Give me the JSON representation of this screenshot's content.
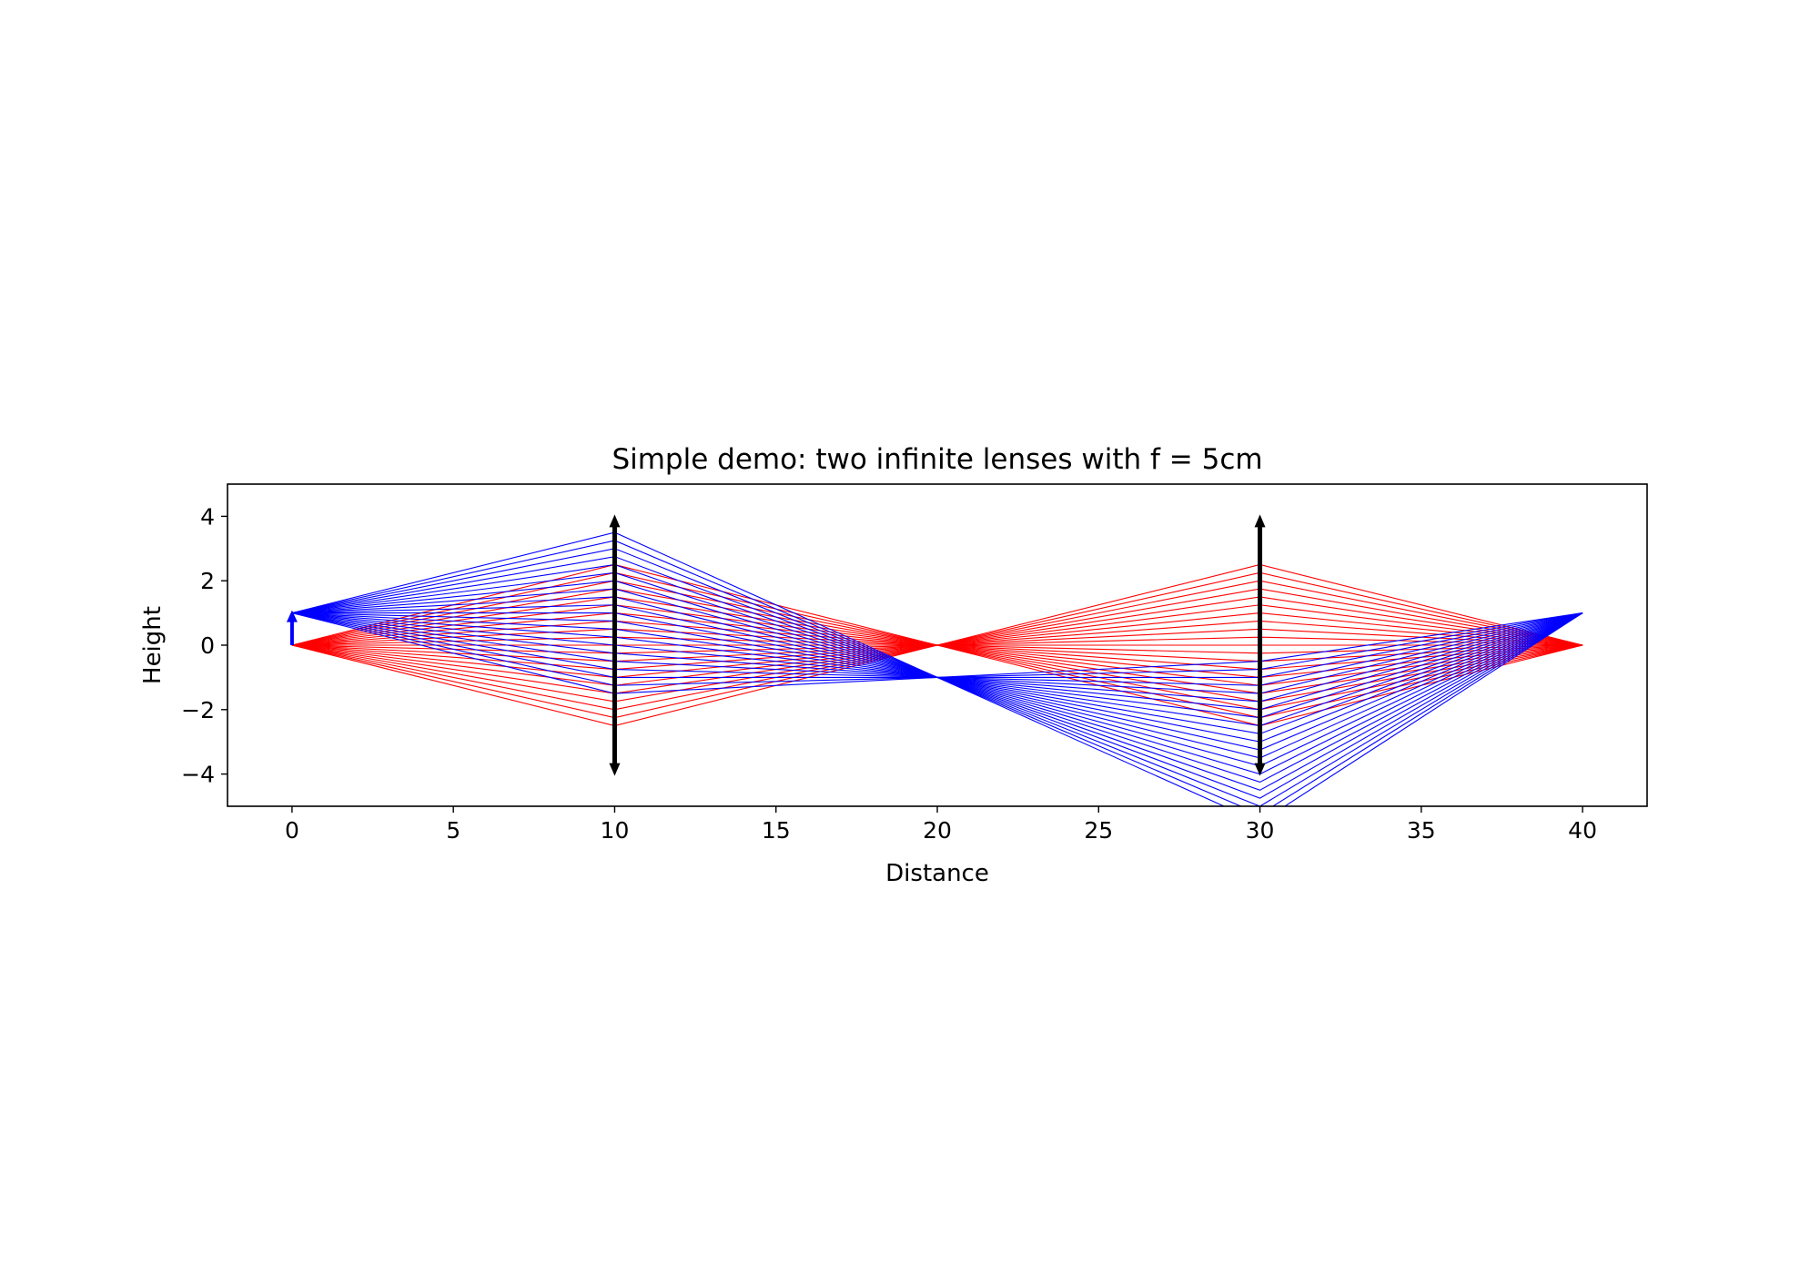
{
  "chart_data": {
    "type": "line",
    "title": "Simple demo: two infinite lenses with f = 5cm",
    "xlabel": "Distance",
    "ylabel": "Height",
    "xlim": [
      -2,
      42
    ],
    "ylim": [
      -5,
      5
    ],
    "xticks": [
      0,
      5,
      10,
      15,
      20,
      25,
      30,
      35,
      40
    ],
    "yticks": [
      4,
      2,
      0,
      -2,
      -4
    ],
    "xtick_labels": [
      "0",
      "5",
      "10",
      "15",
      "20",
      "25",
      "30",
      "35",
      "40"
    ],
    "ytick_labels": [
      "4",
      "2",
      "0",
      "−2",
      "−4"
    ],
    "grid": false,
    "lenses": [
      {
        "x": 10,
        "half_height": 4,
        "color": "#000000"
      },
      {
        "x": 30,
        "half_height": 4,
        "color": "#000000"
      }
    ],
    "object": {
      "x": 0,
      "y_from": 0,
      "y_to": 1,
      "color": "#0000ff"
    },
    "ray_fans": [
      {
        "color": "#ff0000",
        "source_height": 0,
        "x": [
          0,
          10,
          20,
          30,
          40
        ],
        "lens1_heights_from": -2.5,
        "lens1_heights_to": 2.5,
        "ray_count": 21
      },
      {
        "color": "#0000ff",
        "source_height": 1,
        "x": [
          0,
          10,
          20,
          30,
          40
        ],
        "lens1_heights_from": -1.5,
        "lens1_heights_to": 3.5,
        "ray_count": 21
      }
    ],
    "series": [
      {
        "color": "#ff0000",
        "x": [
          0,
          10,
          20,
          30,
          40
        ],
        "y": [
          0,
          -2.5,
          0,
          2.5,
          0
        ]
      },
      {
        "color": "#ff0000",
        "x": [
          0,
          10,
          20,
          30,
          40
        ],
        "y": [
          0,
          2.5,
          0,
          -2.5,
          0
        ]
      },
      {
        "color": "#0000ff",
        "x": [
          0,
          10,
          20,
          30,
          40
        ],
        "y": [
          1,
          3.5,
          -1,
          -4.5,
          1
        ]
      },
      {
        "color": "#0000ff",
        "x": [
          0,
          10,
          20,
          30,
          40
        ],
        "y": [
          1,
          -1.5,
          -1,
          0.5,
          1
        ]
      }
    ]
  }
}
